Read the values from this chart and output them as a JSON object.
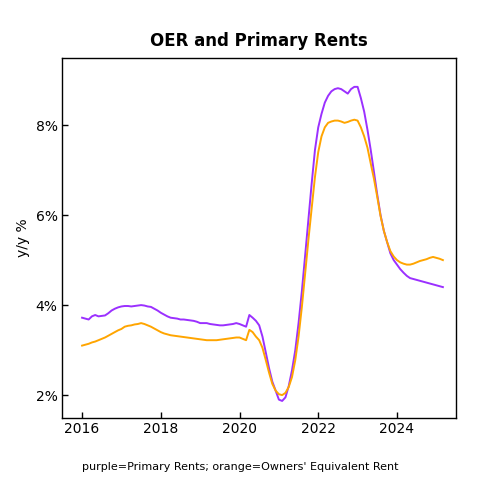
{
  "title": "OER and Primary Rents",
  "ylabel": "y/y %",
  "caption": "purple=Primary Rents; orange=Owners' Equivalent Rent",
  "purple_color": "#9B30FF",
  "orange_color": "#FFA500",
  "background_color": "#FFFFFF",
  "ylim": [
    1.5,
    9.5
  ],
  "yticks": [
    2,
    4,
    6,
    8
  ],
  "ytick_labels": [
    "2%",
    "4%",
    "6%",
    "8%"
  ],
  "xlim_start": 2015.5,
  "xlim_end": 2025.5,
  "xticks": [
    2016,
    2018,
    2020,
    2022,
    2024
  ],
  "primary_rents_dates": [
    2016.0,
    2016.083,
    2016.167,
    2016.25,
    2016.333,
    2016.417,
    2016.5,
    2016.583,
    2016.667,
    2016.75,
    2016.833,
    2016.917,
    2017.0,
    2017.083,
    2017.167,
    2017.25,
    2017.333,
    2017.417,
    2017.5,
    2017.583,
    2017.667,
    2017.75,
    2017.833,
    2017.917,
    2018.0,
    2018.083,
    2018.167,
    2018.25,
    2018.333,
    2018.417,
    2018.5,
    2018.583,
    2018.667,
    2018.75,
    2018.833,
    2018.917,
    2019.0,
    2019.083,
    2019.167,
    2019.25,
    2019.333,
    2019.417,
    2019.5,
    2019.583,
    2019.667,
    2019.75,
    2019.833,
    2019.917,
    2020.0,
    2020.083,
    2020.167,
    2020.25,
    2020.333,
    2020.417,
    2020.5,
    2020.583,
    2020.667,
    2020.75,
    2020.833,
    2020.917,
    2021.0,
    2021.083,
    2021.167,
    2021.25,
    2021.333,
    2021.417,
    2021.5,
    2021.583,
    2021.667,
    2021.75,
    2021.833,
    2021.917,
    2022.0,
    2022.083,
    2022.167,
    2022.25,
    2022.333,
    2022.417,
    2022.5,
    2022.583,
    2022.667,
    2022.75,
    2022.833,
    2022.917,
    2023.0,
    2023.083,
    2023.167,
    2023.25,
    2023.333,
    2023.417,
    2023.5,
    2023.583,
    2023.667,
    2023.75,
    2023.833,
    2023.917,
    2024.0,
    2024.083,
    2024.167,
    2024.25,
    2024.333,
    2024.417,
    2024.5,
    2024.583,
    2024.667,
    2024.75,
    2024.833,
    2024.917,
    2025.0,
    2025.083,
    2025.167
  ],
  "primary_rents_values": [
    3.72,
    3.7,
    3.68,
    3.75,
    3.78,
    3.75,
    3.76,
    3.77,
    3.82,
    3.88,
    3.92,
    3.95,
    3.97,
    3.98,
    3.98,
    3.97,
    3.98,
    3.99,
    4.0,
    3.99,
    3.97,
    3.96,
    3.92,
    3.88,
    3.83,
    3.79,
    3.75,
    3.72,
    3.71,
    3.7,
    3.68,
    3.68,
    3.67,
    3.66,
    3.65,
    3.63,
    3.6,
    3.6,
    3.6,
    3.58,
    3.57,
    3.56,
    3.55,
    3.55,
    3.56,
    3.57,
    3.58,
    3.6,
    3.58,
    3.55,
    3.52,
    3.78,
    3.72,
    3.65,
    3.55,
    3.3,
    2.95,
    2.6,
    2.3,
    2.1,
    1.9,
    1.87,
    1.95,
    2.2,
    2.55,
    3.0,
    3.6,
    4.3,
    5.1,
    5.9,
    6.7,
    7.45,
    7.95,
    8.25,
    8.5,
    8.65,
    8.75,
    8.8,
    8.82,
    8.8,
    8.75,
    8.7,
    8.8,
    8.85,
    8.85,
    8.6,
    8.3,
    7.9,
    7.45,
    6.95,
    6.45,
    6.0,
    5.65,
    5.4,
    5.15,
    5.0,
    4.9,
    4.8,
    4.72,
    4.65,
    4.6,
    4.58,
    4.56,
    4.54,
    4.52,
    4.5,
    4.48,
    4.46,
    4.44,
    4.42,
    4.4
  ],
  "oer_dates": [
    2016.0,
    2016.083,
    2016.167,
    2016.25,
    2016.333,
    2016.417,
    2016.5,
    2016.583,
    2016.667,
    2016.75,
    2016.833,
    2016.917,
    2017.0,
    2017.083,
    2017.167,
    2017.25,
    2017.333,
    2017.417,
    2017.5,
    2017.583,
    2017.667,
    2017.75,
    2017.833,
    2017.917,
    2018.0,
    2018.083,
    2018.167,
    2018.25,
    2018.333,
    2018.417,
    2018.5,
    2018.583,
    2018.667,
    2018.75,
    2018.833,
    2018.917,
    2019.0,
    2019.083,
    2019.167,
    2019.25,
    2019.333,
    2019.417,
    2019.5,
    2019.583,
    2019.667,
    2019.75,
    2019.833,
    2019.917,
    2020.0,
    2020.083,
    2020.167,
    2020.25,
    2020.333,
    2020.417,
    2020.5,
    2020.583,
    2020.667,
    2020.75,
    2020.833,
    2020.917,
    2021.0,
    2021.083,
    2021.167,
    2021.25,
    2021.333,
    2021.417,
    2021.5,
    2021.583,
    2021.667,
    2021.75,
    2021.833,
    2021.917,
    2022.0,
    2022.083,
    2022.167,
    2022.25,
    2022.333,
    2022.417,
    2022.5,
    2022.583,
    2022.667,
    2022.75,
    2022.833,
    2022.917,
    2023.0,
    2023.083,
    2023.167,
    2023.25,
    2023.333,
    2023.417,
    2023.5,
    2023.583,
    2023.667,
    2023.75,
    2023.833,
    2023.917,
    2024.0,
    2024.083,
    2024.167,
    2024.25,
    2024.333,
    2024.417,
    2024.5,
    2024.583,
    2024.667,
    2024.75,
    2024.833,
    2024.917,
    2025.0,
    2025.083,
    2025.167
  ],
  "oer_values": [
    3.1,
    3.12,
    3.14,
    3.17,
    3.19,
    3.22,
    3.25,
    3.28,
    3.32,
    3.36,
    3.4,
    3.44,
    3.47,
    3.52,
    3.54,
    3.55,
    3.57,
    3.58,
    3.6,
    3.58,
    3.55,
    3.52,
    3.48,
    3.44,
    3.4,
    3.37,
    3.35,
    3.33,
    3.32,
    3.31,
    3.3,
    3.29,
    3.28,
    3.27,
    3.26,
    3.25,
    3.24,
    3.23,
    3.22,
    3.22,
    3.22,
    3.22,
    3.23,
    3.24,
    3.25,
    3.26,
    3.27,
    3.28,
    3.28,
    3.25,
    3.22,
    3.45,
    3.4,
    3.3,
    3.22,
    3.05,
    2.78,
    2.5,
    2.25,
    2.1,
    2.02,
    2.0,
    2.05,
    2.18,
    2.4,
    2.78,
    3.3,
    3.95,
    4.7,
    5.45,
    6.15,
    6.85,
    7.4,
    7.75,
    7.95,
    8.05,
    8.08,
    8.1,
    8.1,
    8.08,
    8.05,
    8.07,
    8.1,
    8.12,
    8.1,
    7.95,
    7.75,
    7.5,
    7.15,
    6.8,
    6.4,
    5.98,
    5.65,
    5.4,
    5.2,
    5.08,
    5.0,
    4.95,
    4.92,
    4.9,
    4.9,
    4.92,
    4.95,
    4.98,
    5.0,
    5.02,
    5.05,
    5.07,
    5.05,
    5.03,
    5.0
  ]
}
